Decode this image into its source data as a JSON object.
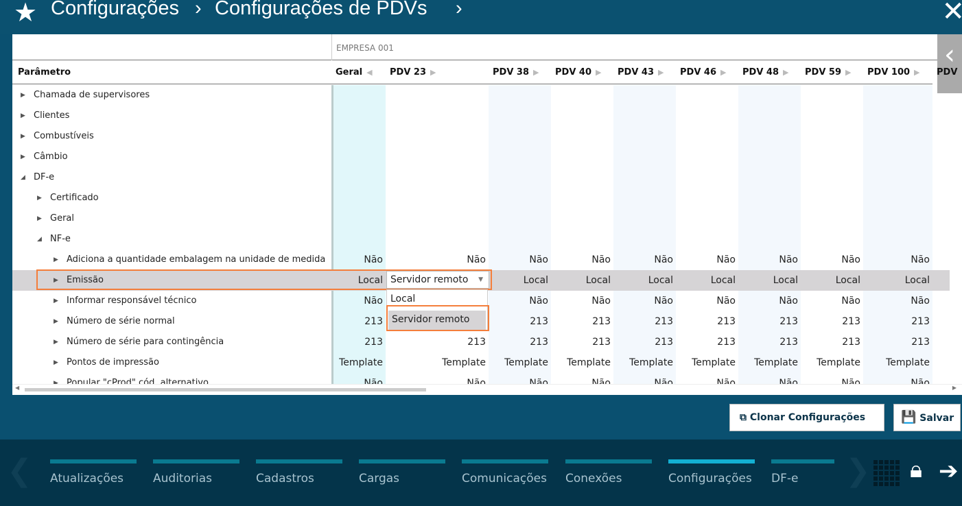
{
  "header": {
    "breadcrumb": [
      "Configurações",
      "Configurações de PDVs"
    ],
    "separator": "›"
  },
  "grid": {
    "group_label": "EMPRESA 001",
    "param_header": "Parâmetro",
    "columns": [
      "Geral",
      "PDV 23",
      "PDV 38",
      "PDV 40",
      "PDV 43",
      "PDV 46",
      "PDV 48",
      "PDV 59",
      "PDV 100",
      "PDV"
    ],
    "rows": [
      {
        "label": "Chamada de supervisores",
        "level": 0,
        "expanded": false,
        "values": []
      },
      {
        "label": "Clientes",
        "level": 0,
        "expanded": false,
        "values": []
      },
      {
        "label": "Combustíveis",
        "level": 0,
        "expanded": false,
        "values": []
      },
      {
        "label": "Câmbio",
        "level": 0,
        "expanded": false,
        "values": []
      },
      {
        "label": "DF-e",
        "level": 0,
        "expanded": true,
        "values": []
      },
      {
        "label": "Certificado",
        "level": 1,
        "expanded": false,
        "values": []
      },
      {
        "label": "Geral",
        "level": 1,
        "expanded": false,
        "values": []
      },
      {
        "label": "NF-e",
        "level": 1,
        "expanded": true,
        "values": []
      },
      {
        "label": "Adiciona a quantidade embalagem na unidade de medida",
        "level": 2,
        "expanded": false,
        "values": [
          "Não",
          "Não",
          "Não",
          "Não",
          "Não",
          "Não",
          "Não",
          "Não",
          "Não"
        ]
      },
      {
        "label": "Emissão",
        "level": 2,
        "expanded": false,
        "selected": true,
        "values": [
          "Local",
          "",
          "Local",
          "Local",
          "Local",
          "Local",
          "Local",
          "Local",
          "Local"
        ]
      },
      {
        "label": "Informar responsável técnico",
        "level": 2,
        "expanded": false,
        "values": [
          "Não",
          "",
          "Não",
          "Não",
          "Não",
          "Não",
          "Não",
          "Não",
          "Não"
        ]
      },
      {
        "label": "Número de série normal",
        "level": 2,
        "expanded": false,
        "values": [
          "213",
          "",
          "213",
          "213",
          "213",
          "213",
          "213",
          "213",
          "213"
        ]
      },
      {
        "label": "Número de série para contingência",
        "level": 2,
        "expanded": false,
        "values": [
          "213",
          "213",
          "213",
          "213",
          "213",
          "213",
          "213",
          "213",
          "213"
        ]
      },
      {
        "label": "Pontos de impressão",
        "level": 2,
        "expanded": false,
        "values": [
          "Template",
          "Template",
          "Template",
          "Template",
          "Template",
          "Template",
          "Template",
          "Template",
          "Template"
        ]
      },
      {
        "label": "Popular \"cProd\" cód. alternativo",
        "level": 2,
        "expanded": false,
        "values": [
          "Não",
          "Não",
          "Não",
          "Não",
          "Não",
          "Não",
          "Não",
          "Não",
          "Não"
        ]
      }
    ],
    "dropdown": {
      "value": "Servidor remoto",
      "options": [
        "Local",
        "Servidor remoto"
      ],
      "highlighted": "Servidor remoto"
    }
  },
  "actions": {
    "clone": "Clonar Configurações",
    "save": "Salvar"
  },
  "nav": {
    "tabs": [
      "Atualizações",
      "Auditorias",
      "Cadastros",
      "Cargas",
      "Comunicações",
      "Conexões",
      "Configurações",
      "DF-e"
    ],
    "active": "Configurações"
  },
  "colors": {
    "header": "#0b5170",
    "nav": "#04344a",
    "highlight": "#f47e3b",
    "active_tab": "#13b0d3"
  }
}
